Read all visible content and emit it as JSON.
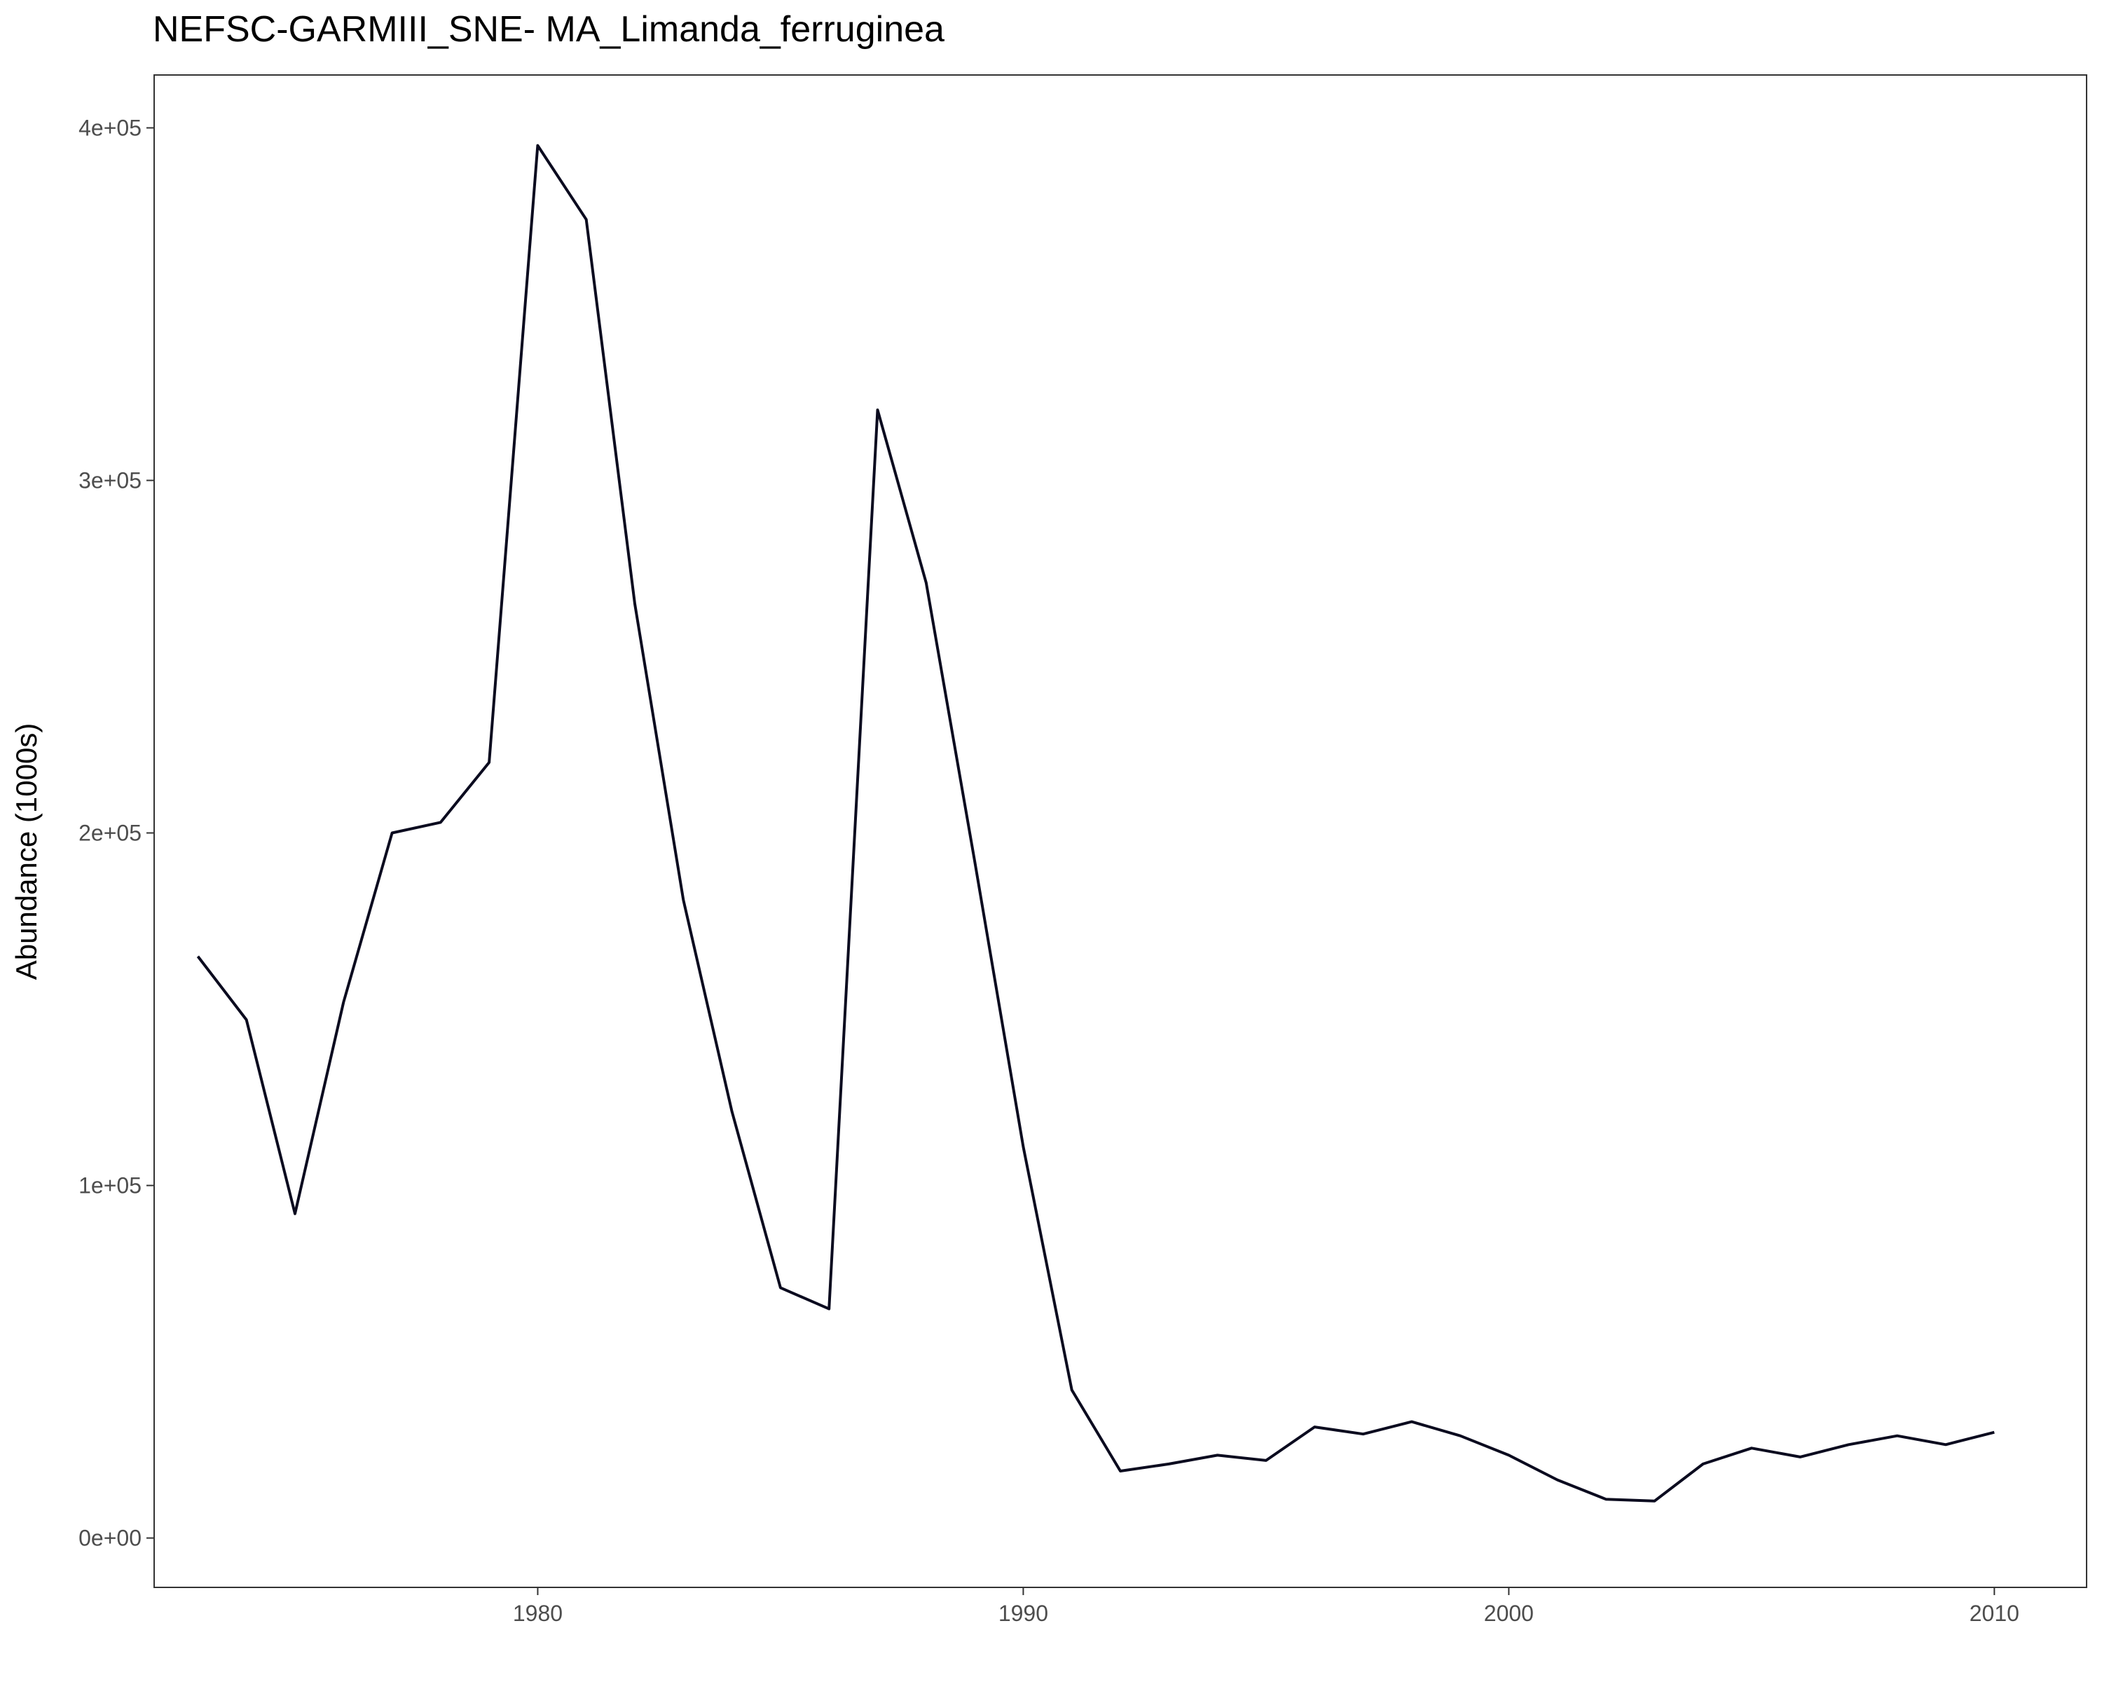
{
  "chart_data": {
    "type": "line",
    "title": "NEFSC-GARMIII_SNE- MA_Limanda_ferruginea",
    "xlabel": "",
    "ylabel": "Abundance (1000s)",
    "xlim": [
      1972.1,
      2011.9
    ],
    "ylim": [
      -14000,
      415000
    ],
    "x_ticks": [
      1980,
      1990,
      2000,
      2010
    ],
    "x_tick_labels": [
      "1980",
      "1990",
      "2000",
      "2010"
    ],
    "y_ticks": [
      0,
      100000,
      200000,
      300000,
      400000
    ],
    "y_tick_labels": [
      "0e+00",
      "1e+05",
      "2e+05",
      "3e+05",
      "4e+05"
    ],
    "grid": false,
    "legend": "none",
    "colors": {
      "line": "#0b0b1f",
      "panel_border": "#333333",
      "tick": "#333333",
      "tick_label": "#4d4d4d"
    },
    "series": [
      {
        "x": [
          1973,
          1974,
          1975,
          1976,
          1977,
          1978,
          1979,
          1980,
          1981,
          1982,
          1983,
          1984,
          1985,
          1986,
          1987,
          1988,
          1989,
          1990,
          1991,
          1992,
          1993,
          1994,
          1995,
          1996,
          1997,
          1998,
          1999,
          2000,
          2001,
          2002,
          2003,
          2004,
          2005,
          2006,
          2007,
          2008,
          2009,
          2010
        ],
        "values": [
          165000,
          147000,
          92000,
          152000,
          200000,
          203000,
          220000,
          395000,
          374000,
          265000,
          181000,
          121000,
          71000,
          65000,
          320000,
          271000,
          192000,
          111000,
          42000,
          19000,
          21000,
          23500,
          22000,
          31500,
          29500,
          33000,
          29000,
          23500,
          16500,
          11000,
          10500,
          21000,
          25500,
          23000,
          26500,
          29000,
          26500,
          30000
        ]
      }
    ]
  }
}
